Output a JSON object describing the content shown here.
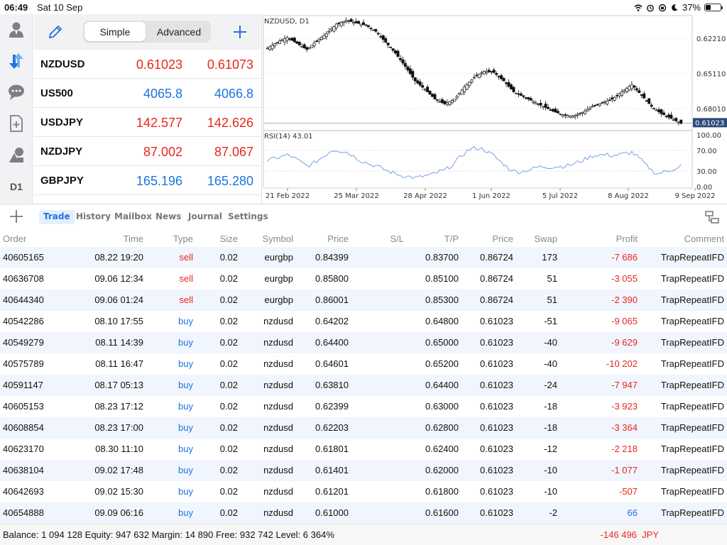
{
  "status": {
    "time": "06:49",
    "date": "Sat 10 Sep",
    "battery": "37%",
    "battery_level": 0.37
  },
  "quotes_toolbar": {
    "simple": "Simple",
    "advanced": "Advanced"
  },
  "sidebar": {
    "timeframe": "D1"
  },
  "quotes": [
    {
      "symbol": "NZDUSD",
      "bid": "0.61023",
      "ask": "0.61073",
      "color": "#e8261e"
    },
    {
      "symbol": "US500",
      "bid": "4065.8",
      "ask": "4066.8",
      "color": "#1e74e0"
    },
    {
      "symbol": "USDJPY",
      "bid": "142.577",
      "ask": "142.626",
      "color": "#e8261e"
    },
    {
      "symbol": "NZDJPY",
      "bid": "87.002",
      "ask": "87.067",
      "color": "#e8261e"
    },
    {
      "symbol": "GBPJPY",
      "bid": "165.196",
      "ask": "165.280",
      "color": "#1e74e0"
    }
  ],
  "chart": {
    "title": "NZDUSD, D1",
    "rsi_label": "RSI(14) 43.01",
    "price_ticks": [
      "0.68010",
      "0.65110",
      "0.62210"
    ],
    "current_price": "0.61023",
    "rsi_ticks": [
      "100.00",
      "70.00",
      "30.00",
      "0.00"
    ],
    "date_ticks": [
      "21 Feb 2022",
      "25 Mar 2022",
      "28 Apr 2022",
      "1 Jun 2022",
      "5 Jul 2022",
      "8 Aug 2022",
      "9 Sep 2022"
    ]
  },
  "chart_data": {
    "type": "candlestick",
    "title": "NZDUSD, D1",
    "y_ticks": [
      0.6221,
      0.6511,
      0.6801
    ],
    "current_price": 0.61023,
    "close_trend": [
      0.672,
      0.677,
      0.681,
      0.676,
      0.671,
      0.678,
      0.684,
      0.692,
      0.695,
      0.693,
      0.691,
      0.686,
      0.677,
      0.668,
      0.657,
      0.645,
      0.638,
      0.63,
      0.626,
      0.63,
      0.64,
      0.648,
      0.653,
      0.652,
      0.645,
      0.636,
      0.632,
      0.628,
      0.624,
      0.62,
      0.617,
      0.616,
      0.619,
      0.624,
      0.627,
      0.63,
      0.636,
      0.642,
      0.633,
      0.624,
      0.618,
      0.614,
      0.61
    ],
    "rsi": {
      "label": "RSI(14) 43.01",
      "value": 43.01,
      "levels": [
        70,
        30
      ],
      "range": [
        0,
        100
      ]
    },
    "x_ticks": [
      "21 Feb 2022",
      "25 Mar 2022",
      "28 Apr 2022",
      "1 Jun 2022",
      "5 Jul 2022",
      "8 Aug 2022",
      "9 Sep 2022"
    ]
  },
  "tabs": [
    "Trade",
    "History",
    "Mailbox",
    "News",
    "Journal",
    "Settings"
  ],
  "columns": [
    "Order",
    "Time",
    "Type",
    "Size",
    "Symbol",
    "Price",
    "S/L",
    "T/P",
    "Price",
    "Swap",
    "Profit",
    "Comment"
  ],
  "orders": [
    {
      "order": "40605165",
      "time": "08.22 19:20",
      "type": "sell",
      "size": "0.02",
      "symbol": "eurgbp",
      "price": "0.84399",
      "sl": "",
      "tp": "0.83700",
      "cur": "0.86724",
      "swap": "173",
      "profit": "-7 686",
      "comment": "TrapRepeatIFD"
    },
    {
      "order": "40636708",
      "time": "09.06 12:34",
      "type": "sell",
      "size": "0.02",
      "symbol": "eurgbp",
      "price": "0.85800",
      "sl": "",
      "tp": "0.85100",
      "cur": "0.86724",
      "swap": "51",
      "profit": "-3 055",
      "comment": "TrapRepeatIFD"
    },
    {
      "order": "40644340",
      "time": "09.06 01:24",
      "type": "sell",
      "size": "0.02",
      "symbol": "eurgbp",
      "price": "0.86001",
      "sl": "",
      "tp": "0.85300",
      "cur": "0.86724",
      "swap": "51",
      "profit": "-2 390",
      "comment": "TrapRepeatIFD"
    },
    {
      "order": "40542286",
      "time": "08.10 17:55",
      "type": "buy",
      "size": "0.02",
      "symbol": "nzdusd",
      "price": "0.64202",
      "sl": "",
      "tp": "0.64800",
      "cur": "0.61023",
      "swap": "-51",
      "profit": "-9 065",
      "comment": "TrapRepeatIFD"
    },
    {
      "order": "40549279",
      "time": "08.11 14:39",
      "type": "buy",
      "size": "0.02",
      "symbol": "nzdusd",
      "price": "0.64400",
      "sl": "",
      "tp": "0.65000",
      "cur": "0.61023",
      "swap": "-40",
      "profit": "-9 629",
      "comment": "TrapRepeatIFD"
    },
    {
      "order": "40575789",
      "time": "08.11 16:47",
      "type": "buy",
      "size": "0.02",
      "symbol": "nzdusd",
      "price": "0.64601",
      "sl": "",
      "tp": "0.65200",
      "cur": "0.61023",
      "swap": "-40",
      "profit": "-10 202",
      "comment": "TrapRepeatIFD"
    },
    {
      "order": "40591147",
      "time": "08.17 05:13",
      "type": "buy",
      "size": "0.02",
      "symbol": "nzdusd",
      "price": "0.63810",
      "sl": "",
      "tp": "0.64400",
      "cur": "0.61023",
      "swap": "-24",
      "profit": "-7 947",
      "comment": "TrapRepeatIFD"
    },
    {
      "order": "40605153",
      "time": "08.23 17:12",
      "type": "buy",
      "size": "0.02",
      "symbol": "nzdusd",
      "price": "0.62399",
      "sl": "",
      "tp": "0.63000",
      "cur": "0.61023",
      "swap": "-18",
      "profit": "-3 923",
      "comment": "TrapRepeatIFD"
    },
    {
      "order": "40608854",
      "time": "08.23 17:00",
      "type": "buy",
      "size": "0.02",
      "symbol": "nzdusd",
      "price": "0.62203",
      "sl": "",
      "tp": "0.62800",
      "cur": "0.61023",
      "swap": "-18",
      "profit": "-3 364",
      "comment": "TrapRepeatIFD"
    },
    {
      "order": "40623170",
      "time": "08.30 11:10",
      "type": "buy",
      "size": "0.02",
      "symbol": "nzdusd",
      "price": "0.61801",
      "sl": "",
      "tp": "0.62400",
      "cur": "0.61023",
      "swap": "-12",
      "profit": "-2 218",
      "comment": "TrapRepeatIFD"
    },
    {
      "order": "40638104",
      "time": "09.02 17:48",
      "type": "buy",
      "size": "0.02",
      "symbol": "nzdusd",
      "price": "0.61401",
      "sl": "",
      "tp": "0.62000",
      "cur": "0.61023",
      "swap": "-10",
      "profit": "-1 077",
      "comment": "TrapRepeatIFD"
    },
    {
      "order": "40642693",
      "time": "09.02 15:30",
      "type": "buy",
      "size": "0.02",
      "symbol": "nzdusd",
      "price": "0.61201",
      "sl": "",
      "tp": "0.61800",
      "cur": "0.61023",
      "swap": "-10",
      "profit": "-507",
      "comment": "TrapRepeatIFD"
    },
    {
      "order": "40654888",
      "time": "09.09 06:16",
      "type": "buy",
      "size": "0.02",
      "symbol": "nzdusd",
      "price": "0.61000",
      "sl": "",
      "tp": "0.61600",
      "cur": "0.61023",
      "swap": "-2",
      "profit": "66",
      "comment": "TrapRepeatIFD"
    }
  ],
  "footer": {
    "summary": "Balance: 1 094 128 Equity: 947 632 Margin: 14 890 Free: 932 742 Level: 6 364%",
    "total": "-146 496",
    "currency": "JPY"
  },
  "colors": {
    "sell": "#e8261e",
    "buy": "#1e74e0",
    "loss": "#e8261e",
    "gain": "#1e74e0",
    "accent": "#1e74e0"
  }
}
